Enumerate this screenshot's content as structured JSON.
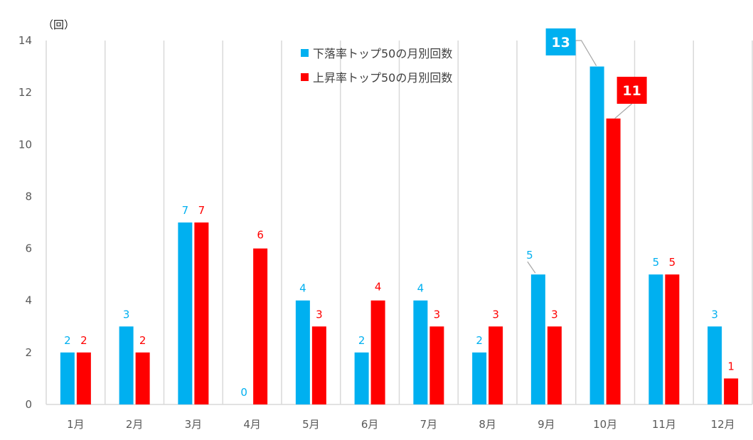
{
  "chart_data": {
    "type": "bar",
    "title": "",
    "unit_label": "（回）",
    "xlabel": "",
    "ylabel": "回",
    "ylim": [
      0,
      14
    ],
    "yticks": [
      0,
      2,
      4,
      6,
      8,
      10,
      12,
      14
    ],
    "grid": "vertical",
    "legend_position": "top-center",
    "categories": [
      "1月",
      "2月",
      "3月",
      "4月",
      "5月",
      "6月",
      "7月",
      "8月",
      "9月",
      "10月",
      "11月",
      "12月"
    ],
    "series": [
      {
        "name": "下落率トップ50の月別回数",
        "color": "#00B0F0",
        "values": [
          2,
          3,
          7,
          0,
          4,
          2,
          4,
          2,
          5,
          13,
          5,
          3
        ]
      },
      {
        "name": "上昇率トップ50の月別回数",
        "color": "#FF0000",
        "values": [
          2,
          2,
          7,
          6,
          3,
          4,
          3,
          3,
          3,
          11,
          5,
          1
        ]
      }
    ],
    "annotations": [
      {
        "series": 0,
        "category": "10月",
        "label": "13",
        "style": "callout-box"
      },
      {
        "series": 1,
        "category": "10月",
        "label": "11",
        "style": "callout-box"
      }
    ]
  }
}
